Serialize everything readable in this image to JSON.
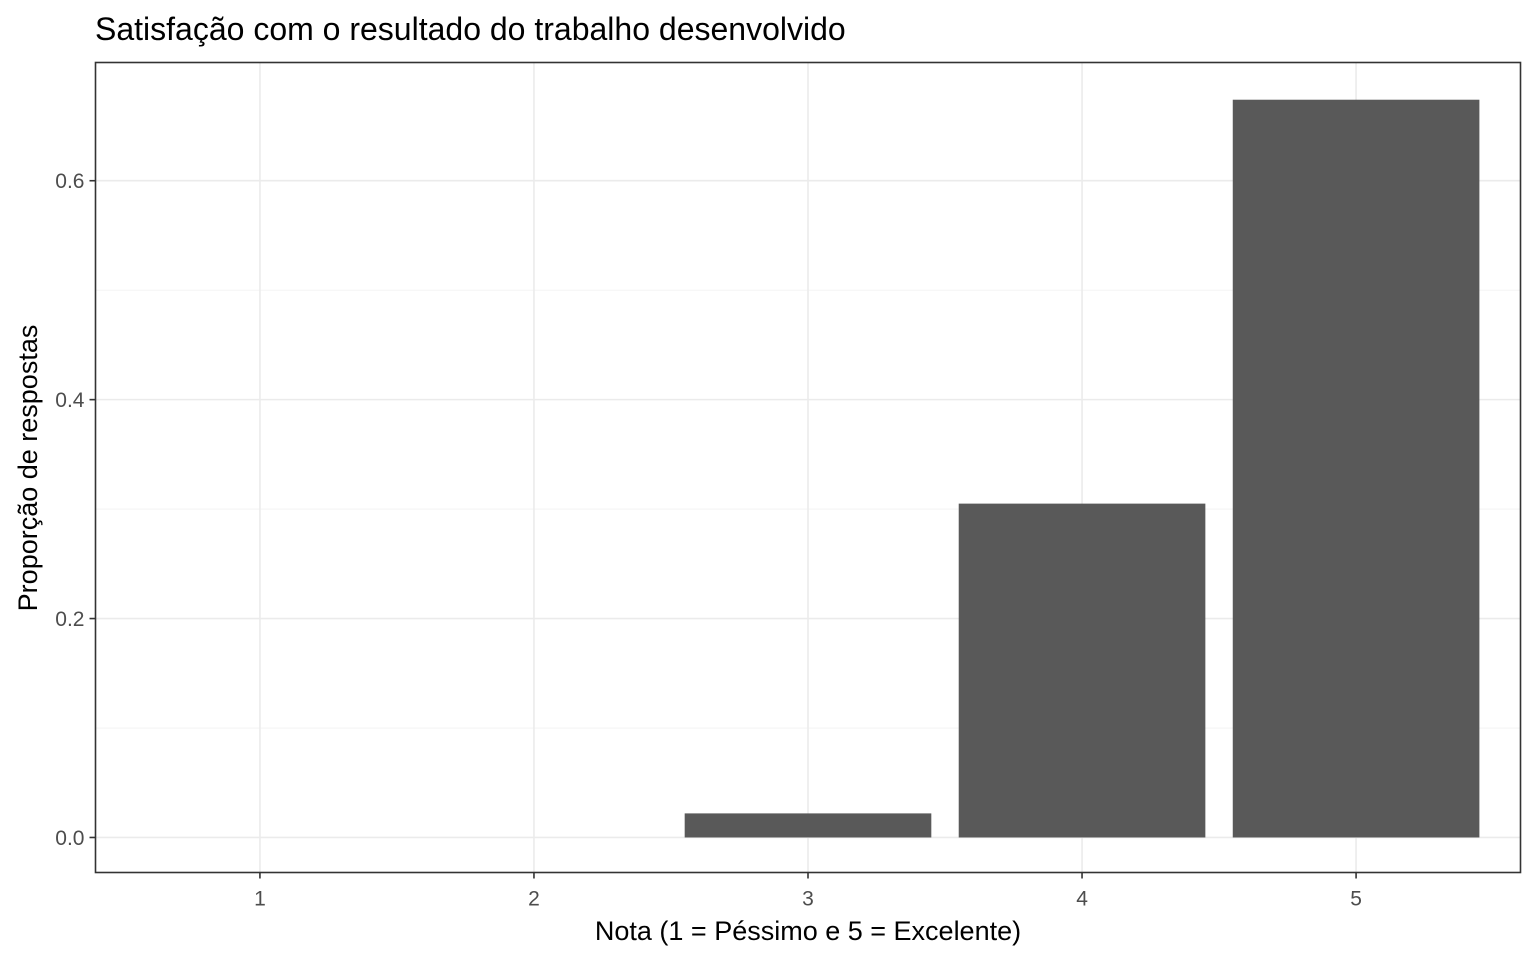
{
  "chart_data": {
    "type": "bar",
    "title": "Satisfação com o resultado do trabalho desenvolvido",
    "xlabel": "Nota (1 = Péssimo e 5 = Excelente)",
    "ylabel": "Proporção de respostas",
    "categories": [
      "1",
      "2",
      "3",
      "4",
      "5"
    ],
    "values": [
      0,
      0,
      0.022,
      0.305,
      0.674
    ],
    "ylim": [
      -0.032,
      0.708
    ],
    "yticks": [
      0.0,
      0.2,
      0.4,
      0.6
    ],
    "ytick_labels": [
      "0.0",
      "0.2",
      "0.4",
      "0.6"
    ],
    "grid": true,
    "bar_color": "#595959",
    "theme": "bw"
  }
}
